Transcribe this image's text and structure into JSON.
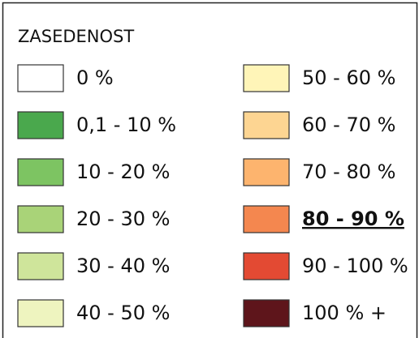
{
  "legend": {
    "title": "ZASEDENOST",
    "items": [
      {
        "label": "0 %",
        "color": "#ffffff"
      },
      {
        "label": "0,1 - 10 %",
        "color": "#4aa84d"
      },
      {
        "label": "10 - 20 %",
        "color": "#7dc462"
      },
      {
        "label": "20 - 30 %",
        "color": "#a9d378"
      },
      {
        "label": "30 - 40 %",
        "color": "#cfe59b"
      },
      {
        "label": "40 - 50 %",
        "color": "#eef4bf"
      },
      {
        "label": "50 - 60 %",
        "color": "#fff5b8"
      },
      {
        "label": "60 - 70 %",
        "color": "#fdd592"
      },
      {
        "label": "70 - 80 %",
        "color": "#fdb46e"
      },
      {
        "label": "80 - 90 %",
        "color": "#f4874f",
        "bold": true
      },
      {
        "label": "90 - 100 %",
        "color": "#e34a33"
      },
      {
        "label": "100 % +",
        "color": "#5e151b"
      }
    ]
  }
}
